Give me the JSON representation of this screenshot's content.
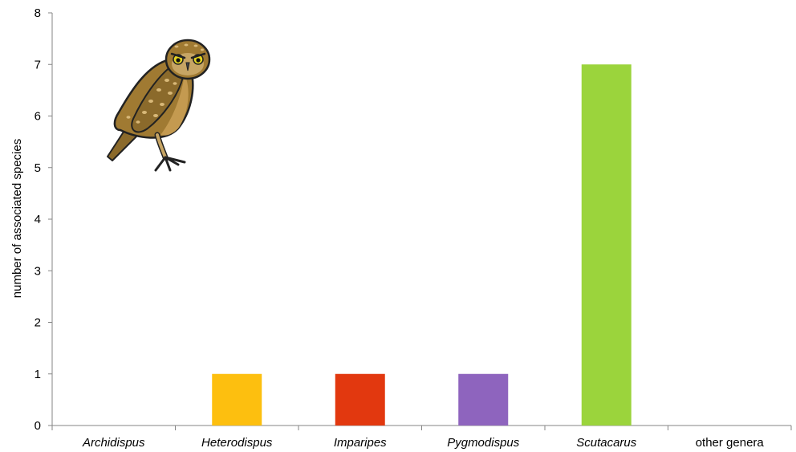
{
  "chart_data": {
    "type": "bar",
    "categories": [
      "Archidispus",
      "Heterodispus",
      "Imparipes",
      "Pygmodispus",
      "Scutacarus",
      "other genera"
    ],
    "italic_categories": [
      true,
      true,
      true,
      true,
      true,
      false
    ],
    "values": [
      0,
      1,
      1,
      1,
      7,
      0
    ],
    "colors": [
      "#ffffff",
      "#FDBF0F",
      "#E2380F",
      "#8E64BE",
      "#9BD43C",
      "#ffffff"
    ],
    "ylabel": "number of associated species",
    "xlabel": "",
    "title": "",
    "ylim": [
      0,
      8
    ],
    "yticks": [
      0,
      1,
      2,
      3,
      4,
      5,
      6,
      7,
      8
    ],
    "grid": false,
    "legend": "none",
    "decoration": "owl-illustration"
  }
}
